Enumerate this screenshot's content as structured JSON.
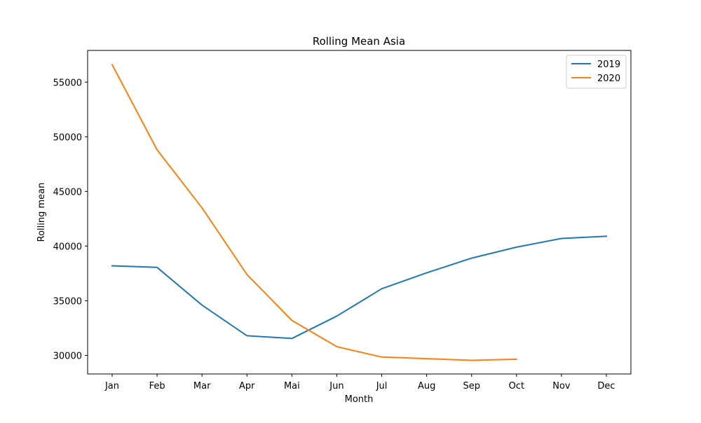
{
  "chart_data": {
    "type": "line",
    "title": "Rolling Mean Asia",
    "xlabel": "Month",
    "ylabel": "Rolling mean",
    "categories": [
      "Jan",
      "Feb",
      "Mar",
      "Apr",
      "Mai",
      "Jun",
      "Jul",
      "Aug",
      "Sep",
      "Oct",
      "Nov",
      "Dec"
    ],
    "ylim": [
      28300,
      57900
    ],
    "yticks": [
      30000,
      35000,
      40000,
      45000,
      50000,
      55000
    ],
    "grid": false,
    "legend_position": "top-right",
    "series": [
      {
        "name": "2019",
        "color": "#1f77b4",
        "values": [
          38200,
          38050,
          34600,
          31800,
          31550,
          33600,
          36100,
          37550,
          38900,
          39900,
          40700,
          40900
        ]
      },
      {
        "name": "2020",
        "color": "#ff7f0e",
        "values": [
          56600,
          48800,
          43500,
          37400,
          33200,
          30800,
          29850,
          29700,
          29550,
          29650,
          null,
          null
        ]
      }
    ]
  }
}
